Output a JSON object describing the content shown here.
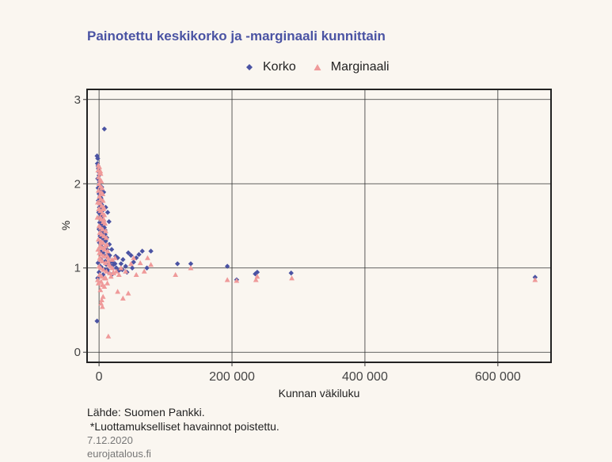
{
  "chart_data": {
    "type": "scatter",
    "title": "Painotettu keskikorko ja -marginaali kunnittain",
    "xlabel": "Kunnan väkiluku",
    "ylabel": "%",
    "xlim": [
      -18000,
      680000
    ],
    "ylim": [
      -0.12,
      3.12
    ],
    "xticks": [
      0,
      200000,
      400000,
      600000
    ],
    "xtick_labels": [
      "0",
      "200 000",
      "400 000",
      "600 000"
    ],
    "yticks": [
      0,
      1,
      2,
      3
    ],
    "ytick_labels": [
      "0",
      "1",
      "2",
      "3"
    ],
    "grid": true,
    "legend_position": "top",
    "series": [
      {
        "name": "Korko",
        "marker": "diamond",
        "color": "#4a53a3",
        "points": [
          [
            -3000,
            0.37
          ],
          [
            -3000,
            2.33
          ],
          [
            -2000,
            2.3
          ],
          [
            -2500,
            2.24
          ],
          [
            -1500,
            2.21
          ],
          [
            -1000,
            2.18
          ],
          [
            -500,
            2.14
          ],
          [
            0,
            2.1
          ],
          [
            -2000,
            2.06
          ],
          [
            500,
            2.02
          ],
          [
            1000,
            1.98
          ],
          [
            -1500,
            1.95
          ],
          [
            2000,
            1.92
          ],
          [
            0,
            1.88
          ],
          [
            1500,
            1.85
          ],
          [
            3000,
            1.83
          ],
          [
            -1000,
            1.8
          ],
          [
            2500,
            1.77
          ],
          [
            4000,
            1.75
          ],
          [
            500,
            1.72
          ],
          [
            3500,
            1.7
          ],
          [
            5000,
            1.68
          ],
          [
            -500,
            1.66
          ],
          [
            1500,
            1.64
          ],
          [
            6000,
            1.62
          ],
          [
            2000,
            1.6
          ],
          [
            4500,
            1.58
          ],
          [
            7000,
            1.56
          ],
          [
            1000,
            1.54
          ],
          [
            3000,
            1.52
          ],
          [
            5500,
            1.5
          ],
          [
            8000,
            1.48
          ],
          [
            0,
            1.46
          ],
          [
            2500,
            1.44
          ],
          [
            6500,
            1.42
          ],
          [
            9000,
            1.4
          ],
          [
            1500,
            1.38
          ],
          [
            4000,
            1.36
          ],
          [
            7500,
            1.34
          ],
          [
            10000,
            1.32
          ],
          [
            500,
            1.3
          ],
          [
            3500,
            1.28
          ],
          [
            11000,
            1.26
          ],
          [
            5000,
            1.24
          ],
          [
            12000,
            1.22
          ],
          [
            2000,
            1.2
          ],
          [
            6000,
            1.18
          ],
          [
            13000,
            1.16
          ],
          [
            8000,
            1.14
          ],
          [
            14000,
            1.12
          ],
          [
            3000,
            1.1
          ],
          [
            9500,
            1.08
          ],
          [
            16000,
            1.06
          ],
          [
            11000,
            1.04
          ],
          [
            18000,
            1.02
          ],
          [
            4500,
            1.0
          ],
          [
            12500,
            0.98
          ],
          [
            20000,
            1.08
          ],
          [
            22000,
            1.04
          ],
          [
            8000,
            2.65
          ],
          [
            10000,
            1.72
          ],
          [
            13000,
            1.66
          ],
          [
            15000,
            1.55
          ],
          [
            24000,
            1.05
          ],
          [
            26000,
            1.0
          ],
          [
            28000,
            1.12
          ],
          [
            30000,
            0.97
          ],
          [
            33000,
            1.05
          ],
          [
            36000,
            1.1
          ],
          [
            40000,
            1.02
          ],
          [
            44000,
            1.18
          ],
          [
            48000,
            1.15
          ],
          [
            52000,
            1.07
          ],
          [
            56000,
            1.12
          ],
          [
            60000,
            1.16
          ],
          [
            65000,
            1.2
          ],
          [
            72000,
            1.0
          ],
          [
            78000,
            1.2
          ],
          [
            118000,
            1.05
          ],
          [
            138000,
            1.05
          ],
          [
            193000,
            1.02
          ],
          [
            235000,
            0.93
          ],
          [
            238000,
            0.95
          ],
          [
            289000,
            0.94
          ],
          [
            207000,
            0.86
          ],
          [
            656000,
            0.89
          ],
          [
            -2000,
            0.88
          ],
          [
            0,
            0.95
          ],
          [
            6000,
            0.92
          ],
          [
            9000,
            0.98
          ],
          [
            14000,
            0.95
          ],
          [
            16000,
            1.15
          ],
          [
            19000,
            0.92
          ],
          [
            -1500,
            1.06
          ],
          [
            2000,
            1.02
          ],
          [
            7000,
            1.9
          ],
          [
            4000,
            1.96
          ],
          [
            6000,
            1.5
          ],
          [
            9000,
            1.45
          ],
          [
            11500,
            1.36
          ],
          [
            15500,
            1.28
          ],
          [
            19000,
            1.22
          ],
          [
            25000,
            1.14
          ],
          [
            35000,
            0.98
          ],
          [
            42000,
            0.95
          ],
          [
            50000,
            1.0
          ]
        ]
      },
      {
        "name": "Marginaali",
        "marker": "triangle",
        "color": "#ef9a9a",
        "points": [
          [
            -1000,
            2.22
          ],
          [
            500,
            2.2
          ],
          [
            -1500,
            2.16
          ],
          [
            1000,
            2.13
          ],
          [
            2500,
            2.12
          ],
          [
            -500,
            2.08
          ],
          [
            1500,
            2.05
          ],
          [
            3500,
            2.03
          ],
          [
            0,
            2.0
          ],
          [
            2000,
            1.97
          ],
          [
            4500,
            1.95
          ],
          [
            -1000,
            1.92
          ],
          [
            3000,
            1.9
          ],
          [
            5500,
            1.88
          ],
          [
            500,
            1.85
          ],
          [
            2500,
            1.82
          ],
          [
            6000,
            1.8
          ],
          [
            1000,
            1.77
          ],
          [
            4000,
            1.74
          ],
          [
            7000,
            1.72
          ],
          [
            -500,
            1.7
          ],
          [
            2000,
            1.68
          ],
          [
            5000,
            1.65
          ],
          [
            8000,
            1.63
          ],
          [
            1500,
            1.6
          ],
          [
            3500,
            1.58
          ],
          [
            6500,
            1.55
          ],
          [
            9000,
            1.53
          ],
          [
            0,
            1.5
          ],
          [
            2500,
            1.48
          ],
          [
            5500,
            1.46
          ],
          [
            10000,
            1.44
          ],
          [
            1000,
            1.42
          ],
          [
            4000,
            1.4
          ],
          [
            7500,
            1.38
          ],
          [
            11000,
            1.36
          ],
          [
            -1000,
            1.34
          ],
          [
            3000,
            1.32
          ],
          [
            6000,
            1.3
          ],
          [
            12000,
            1.28
          ],
          [
            1500,
            1.26
          ],
          [
            4500,
            1.24
          ],
          [
            8500,
            1.22
          ],
          [
            13000,
            1.2
          ],
          [
            500,
            1.18
          ],
          [
            3500,
            1.16
          ],
          [
            7000,
            1.14
          ],
          [
            14000,
            1.12
          ],
          [
            2000,
            1.1
          ],
          [
            5000,
            1.08
          ],
          [
            9500,
            1.06
          ],
          [
            15000,
            1.04
          ],
          [
            0,
            1.02
          ],
          [
            2500,
            1.0
          ],
          [
            6500,
            0.98
          ],
          [
            11000,
            0.96
          ],
          [
            16000,
            0.94
          ],
          [
            1000,
            0.92
          ],
          [
            4000,
            0.9
          ],
          [
            8000,
            0.88
          ],
          [
            -2000,
            0.86
          ],
          [
            3000,
            0.84
          ],
          [
            -1000,
            0.82
          ],
          [
            5000,
            0.8
          ],
          [
            2000,
            0.74
          ],
          [
            6000,
            0.66
          ],
          [
            4000,
            0.62
          ],
          [
            3000,
            0.58
          ],
          [
            5000,
            0.54
          ],
          [
            14000,
            0.19
          ],
          [
            18000,
            0.9
          ],
          [
            20000,
            1.0
          ],
          [
            22000,
            0.94
          ],
          [
            24000,
            1.12
          ],
          [
            26000,
            0.96
          ],
          [
            28000,
            0.72
          ],
          [
            30000,
            0.92
          ],
          [
            33000,
            1.0
          ],
          [
            36000,
            0.64
          ],
          [
            40000,
            0.96
          ],
          [
            44000,
            0.7
          ],
          [
            48000,
            1.05
          ],
          [
            52000,
            1.12
          ],
          [
            56000,
            0.92
          ],
          [
            62000,
            1.06
          ],
          [
            68000,
            0.96
          ],
          [
            73000,
            1.12
          ],
          [
            78000,
            1.04
          ],
          [
            115000,
            0.92
          ],
          [
            138000,
            1.0
          ],
          [
            193000,
            0.86
          ],
          [
            236000,
            0.86
          ],
          [
            238000,
            0.9
          ],
          [
            290000,
            0.88
          ],
          [
            207000,
            0.85
          ],
          [
            656000,
            0.86
          ],
          [
            -2500,
            1.6
          ],
          [
            -2000,
            1.78
          ],
          [
            -1500,
            1.22
          ],
          [
            7000,
            1.58
          ],
          [
            9000,
            1.26
          ],
          [
            11500,
            1.15
          ],
          [
            13500,
            1.08
          ],
          [
            17000,
            1.02
          ],
          [
            19500,
            1.1
          ],
          [
            21500,
            0.95
          ],
          [
            10000,
            0.88
          ],
          [
            12500,
            0.82
          ],
          [
            8000,
            0.78
          ],
          [
            6500,
            1.7
          ],
          [
            4500,
            1.88
          ],
          [
            2000,
            2.15
          ],
          [
            3000,
            1.3
          ],
          [
            1000,
            1.12
          ]
        ]
      }
    ]
  },
  "footer": {
    "source": "Lähde: Suomen Pankki.",
    "note": " *Luottamukselliset havainnot poistettu.",
    "date": "7.12.2020",
    "site": "eurojatalous.fi"
  }
}
